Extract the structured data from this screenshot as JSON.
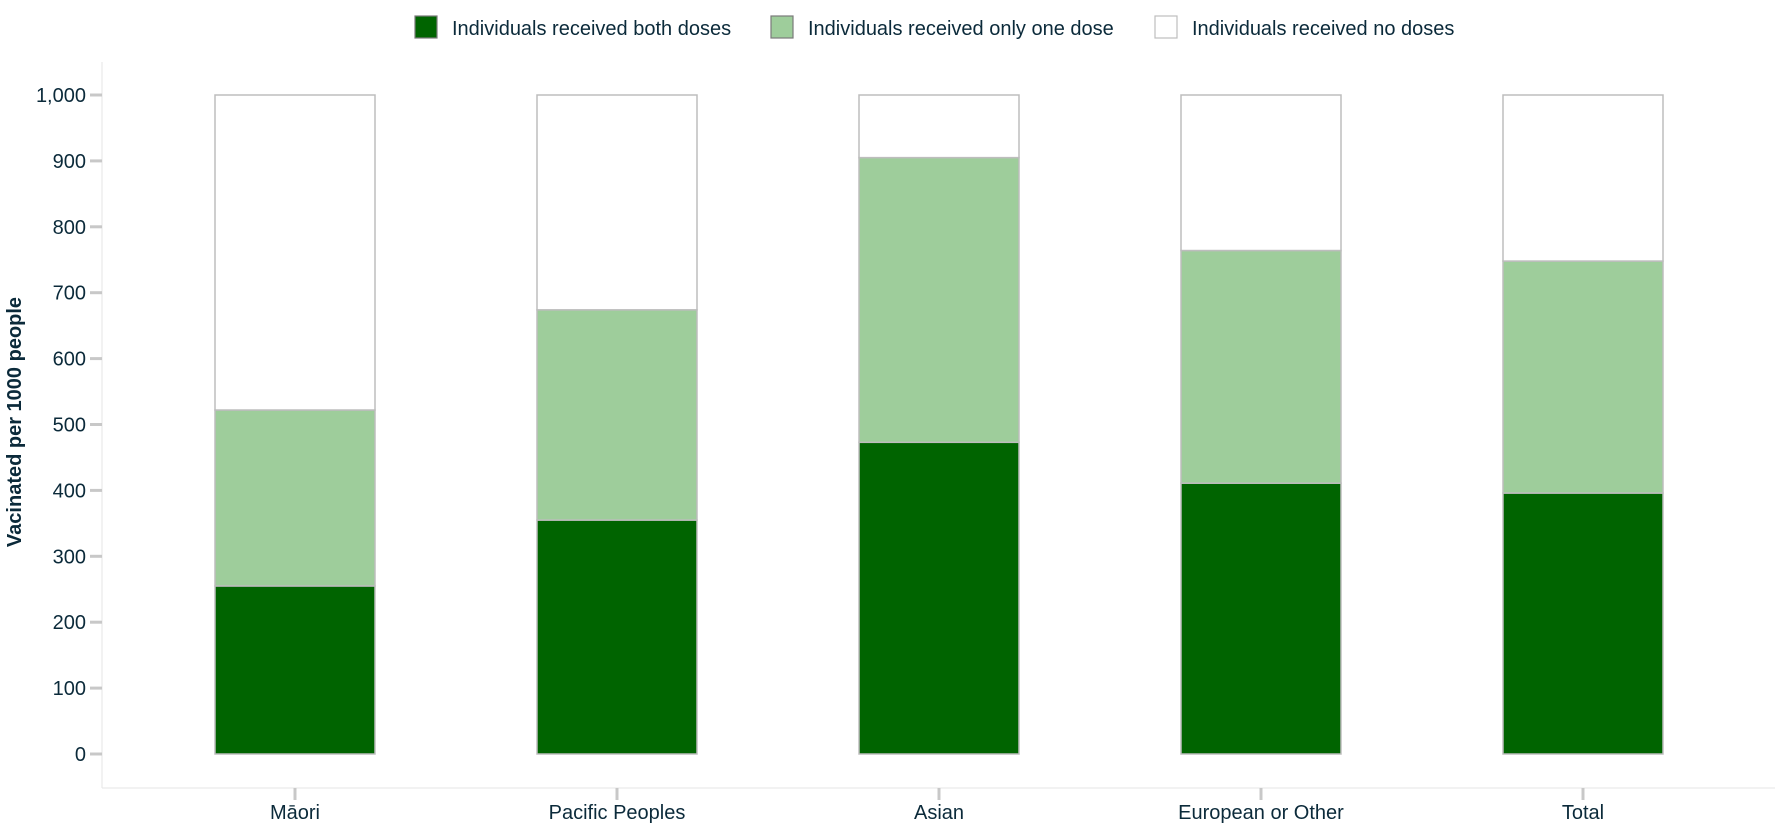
{
  "chart_data": {
    "type": "bar",
    "stacked": true,
    "categories": [
      "Māori",
      "Pacific Peoples",
      "Asian",
      "European or Other",
      "Total"
    ],
    "series": [
      {
        "name": "Individuals received both doses",
        "color": "#006400",
        "values": [
          255,
          355,
          473,
          411,
          396
        ]
      },
      {
        "name": "Individuals received only one dose",
        "color": "#9ecd9b",
        "values": [
          267,
          319,
          432,
          353,
          352
        ]
      },
      {
        "name": "Individuals received no doses",
        "color": "#ffffff",
        "values": [
          478,
          326,
          95,
          236,
          252
        ]
      }
    ],
    "ylabel": "Vacinated per 1000 people",
    "xlabel": "",
    "ylim": [
      0,
      1000
    ],
    "yticks": [
      0,
      100,
      200,
      300,
      400,
      500,
      600,
      700,
      800,
      900,
      1000
    ],
    "ytick_labels": [
      "0",
      "100",
      "200",
      "300",
      "400",
      "500",
      "600",
      "700",
      "800",
      "900",
      "1,000"
    ],
    "legend_position": "top-center",
    "grid": false
  },
  "colors": {
    "axis": "#c8c8c8",
    "bar_border": "#bdbdbd",
    "text": "#0b2a3a"
  }
}
